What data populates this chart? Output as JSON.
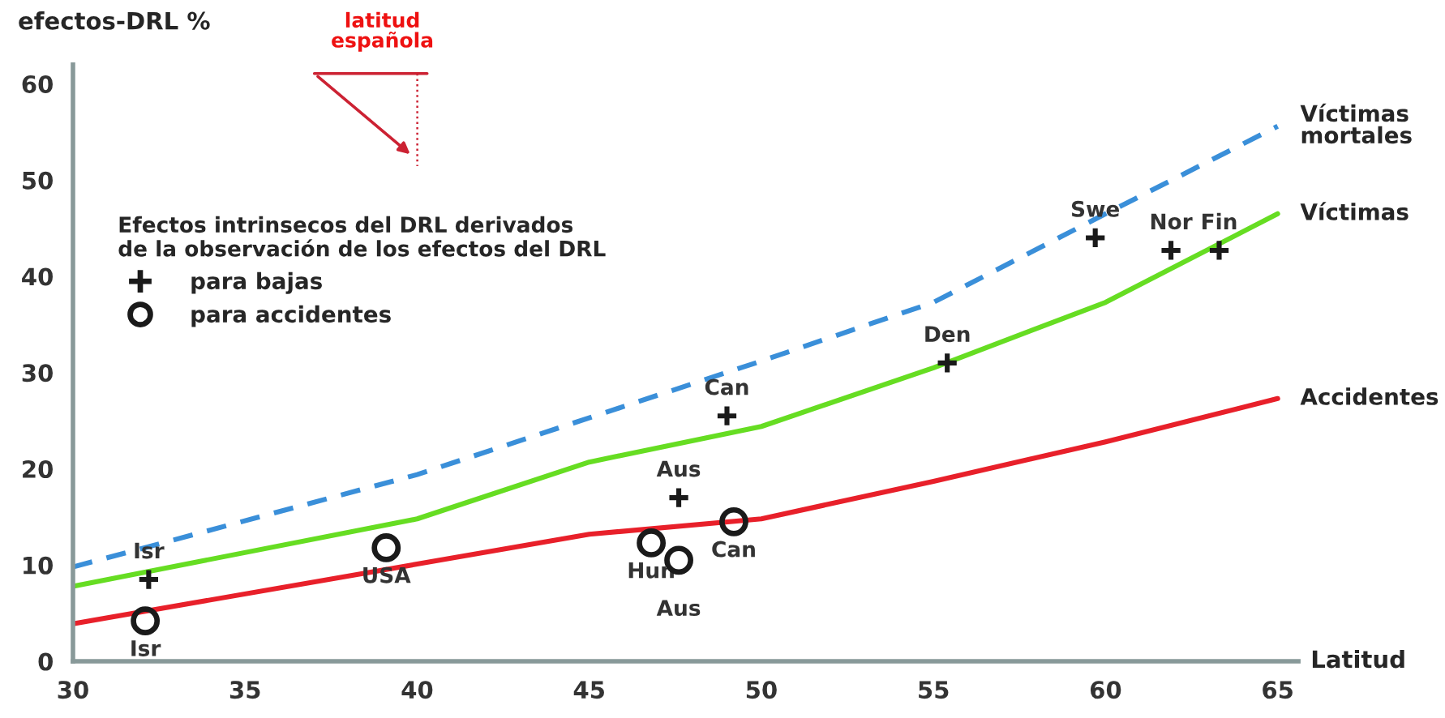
{
  "chart_data": {
    "type": "line",
    "ylabel": "efectos-DRL %",
    "xlabel": "Latitud",
    "legend_title": "Efectos intrinsecos del DRL derivados\nde la observación de los efectos del DRL",
    "xlim": [
      30,
      65.6
    ],
    "ylim": [
      0,
      62
    ],
    "xticks": [
      30,
      35,
      40,
      45,
      50,
      55,
      60,
      65
    ],
    "yticks": [
      0,
      10,
      20,
      30,
      40,
      50,
      60
    ],
    "legend": "top left",
    "grid": false,
    "series": [
      {
        "name": "Víctimas mortales",
        "line_style": "dashed",
        "marker": "none",
        "color": "#3a8fd9",
        "x": [
          30,
          40,
          50,
          55,
          60,
          65
        ],
        "values": [
          9.8,
          19.4,
          31.2,
          37.3,
          46.5,
          55.6
        ]
      },
      {
        "name": "Víctimas",
        "line_style": "solid",
        "marker": "none",
        "color": "#66dd22",
        "x": [
          30,
          40,
          45,
          50,
          55,
          60,
          65
        ],
        "values": [
          7.8,
          14.8,
          20.7,
          24.4,
          30.5,
          37.3,
          46.5
        ]
      },
      {
        "name": "Accidentes",
        "line_style": "solid",
        "marker": "none",
        "color": "#e8202a",
        "x": [
          30,
          40,
          45,
          50,
          55,
          60,
          65
        ],
        "values": [
          3.9,
          10.1,
          13.2,
          14.8,
          18.7,
          22.8,
          27.3
        ]
      },
      {
        "name": "para bajas",
        "type": "scatter",
        "marker": "cross",
        "color": "#1a1a1a",
        "x": [
          32.2,
          47.6,
          49.0,
          55.4,
          59.7,
          61.9,
          63.3
        ],
        "values": [
          8.5,
          17.0,
          25.5,
          31.0,
          44.0,
          42.7,
          42.7
        ]
      },
      {
        "name": "para accidentes",
        "type": "scatter",
        "marker": "circle",
        "color": "#1a1a1a",
        "x": [
          32.1,
          39.1,
          46.8,
          47.6,
          49.2
        ],
        "values": [
          4.2,
          11.8,
          12.3,
          10.5,
          14.5
        ]
      }
    ],
    "annotations": [
      {
        "text": "Isr",
        "x": 32.2,
        "y": 8.5
      },
      {
        "text": "Aus",
        "x": 47.6,
        "y": 17.0
      },
      {
        "text": "Can",
        "x": 49.0,
        "y": 25.5
      },
      {
        "text": "Den",
        "x": 55.4,
        "y": 31.0
      },
      {
        "text": "Swe",
        "x": 59.7,
        "y": 44.0
      },
      {
        "text": "Nor",
        "x": 61.9,
        "y": 42.7
      },
      {
        "text": "Fin",
        "x": 63.3,
        "y": 42.7
      },
      {
        "text": "Isr",
        "x": 32.1,
        "y": 4.2
      },
      {
        "text": "USA",
        "x": 39.1,
        "y": 11.8
      },
      {
        "text": "Hun",
        "x": 46.8,
        "y": 12.3
      },
      {
        "text": "Aus",
        "x": 47.6,
        "y": 10.5
      },
      {
        "text": "Can",
        "x": 49.2,
        "y": 14.5
      },
      "latitud\nespañola"
    ]
  }
}
